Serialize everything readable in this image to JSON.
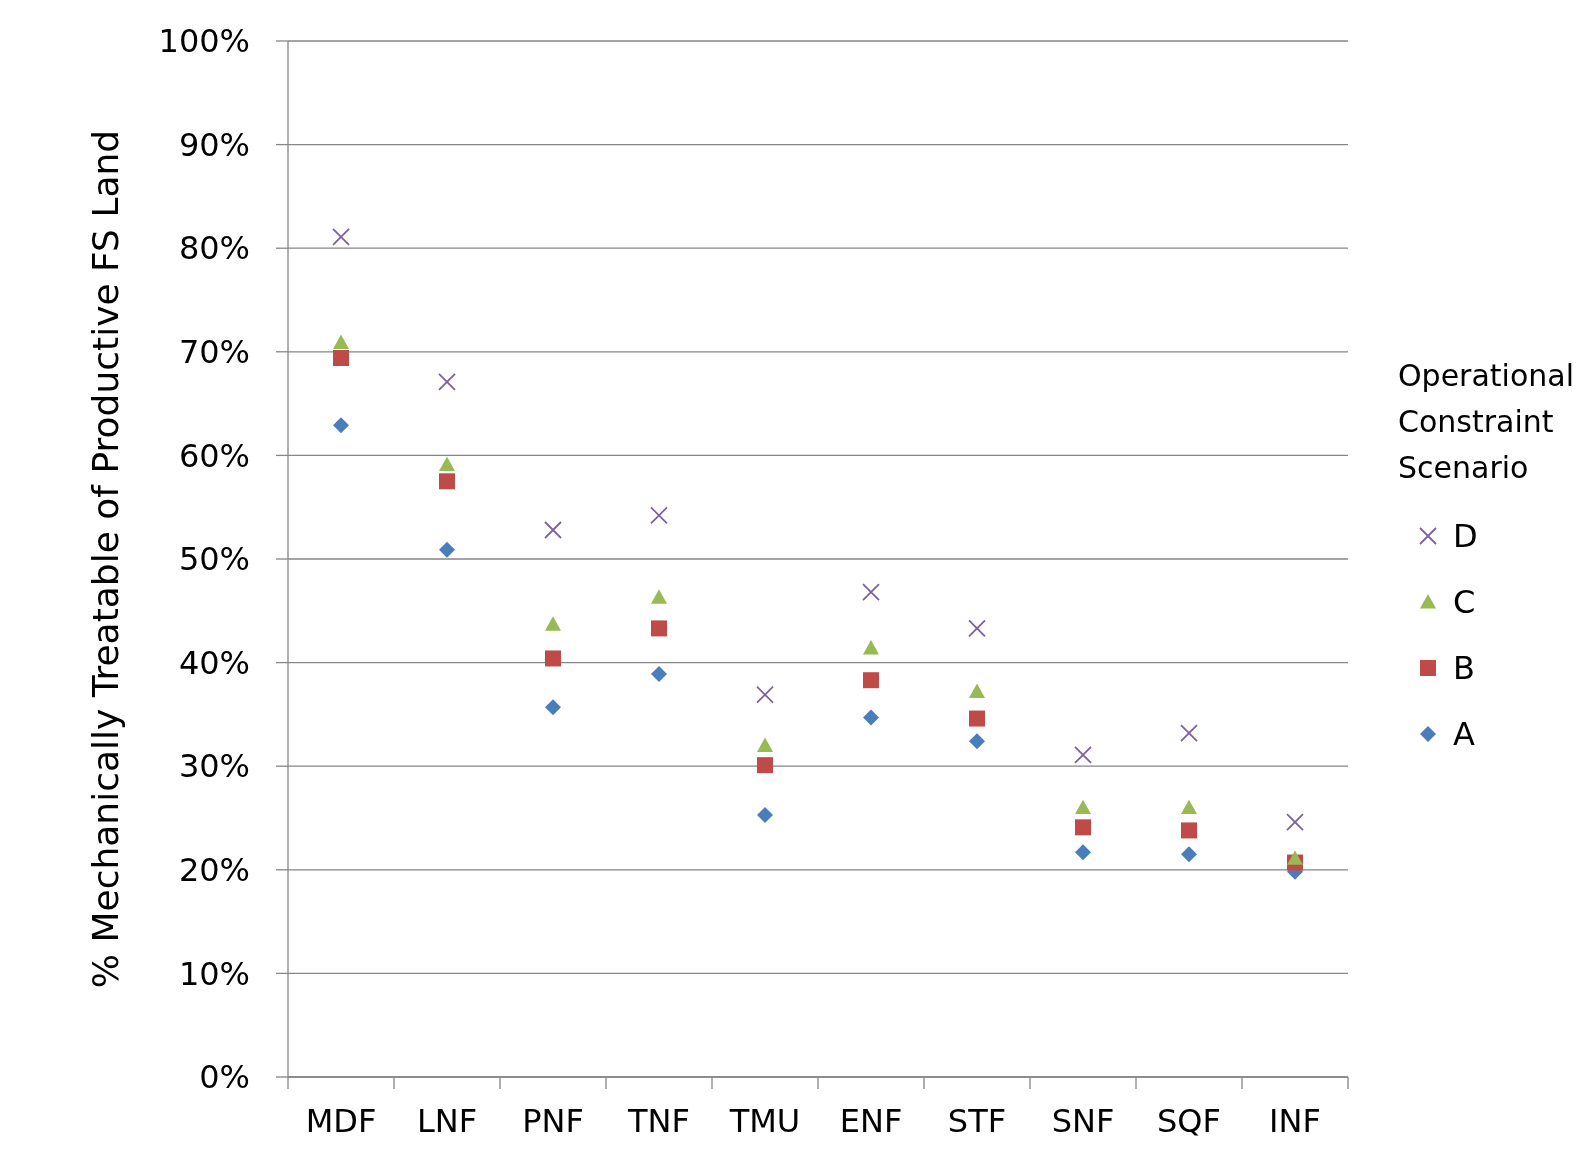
{
  "chart_data": {
    "type": "scatter",
    "ylabel": "% Mechanically Treatable of Productive FS Land",
    "legend_title": "Operational Constraint Scenario",
    "legend": "right",
    "grid": "y",
    "categories": [
      "MDF",
      "LNF",
      "PNF",
      "TNF",
      "TMU",
      "ENF",
      "STF",
      "SNF",
      "SQF",
      "INF"
    ],
    "ylim": [
      0,
      100
    ],
    "yticks": [
      {
        "value": 0,
        "label": "0%"
      },
      {
        "value": 10,
        "label": "10%"
      },
      {
        "value": 20,
        "label": "20%"
      },
      {
        "value": 30,
        "label": "30%"
      },
      {
        "value": 40,
        "label": "40%"
      },
      {
        "value": 50,
        "label": "50%"
      },
      {
        "value": 60,
        "label": "60%"
      },
      {
        "value": 70,
        "label": "70%"
      },
      {
        "value": 80,
        "label": "80%"
      },
      {
        "value": 90,
        "label": "90%"
      },
      {
        "value": 100,
        "label": "100%"
      }
    ],
    "series": [
      {
        "name": "D",
        "color": "#7d60a0",
        "marker": "cross",
        "values": [
          81.1,
          67.1,
          52.8,
          54.2,
          36.9,
          46.8,
          43.3,
          31.1,
          33.2,
          24.6
        ]
      },
      {
        "name": "C",
        "color": "#98b954",
        "marker": "triangle",
        "values": [
          70.9,
          59.1,
          43.7,
          46.3,
          32.0,
          41.4,
          37.2,
          26.0,
          26.0,
          21.1
        ]
      },
      {
        "name": "B",
        "color": "#be4b48",
        "marker": "square",
        "values": [
          69.4,
          57.5,
          40.4,
          43.3,
          30.1,
          38.3,
          34.6,
          24.1,
          23.8,
          20.7
        ]
      },
      {
        "name": "A",
        "color": "#4a7ebb",
        "marker": "diamond",
        "values": [
          62.9,
          50.9,
          35.7,
          38.9,
          25.3,
          34.7,
          32.4,
          21.7,
          21.5,
          19.8
        ]
      }
    ]
  }
}
